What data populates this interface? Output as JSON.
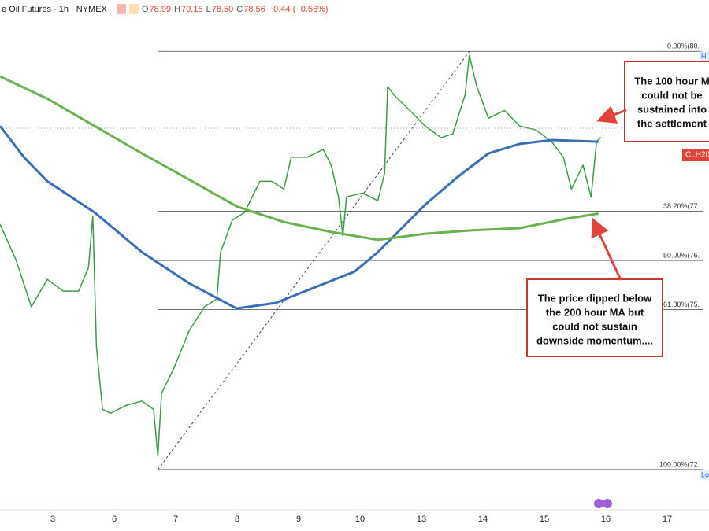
{
  "chart_data": {
    "type": "line",
    "header": {
      "symbol": "e Oil Futures · 1h · NYMEX",
      "ohlc": [
        {
          "label": "O",
          "value": "78.99"
        },
        {
          "label": "H",
          "value": "79.15"
        },
        {
          "label": "L",
          "value": "78.50"
        },
        {
          "label": "C",
          "value": "78.56"
        }
      ],
      "change": "−0.44 (−0.56%)"
    },
    "price_tag": "CLH20",
    "xlim": [
      2.14,
      13.68
    ],
    "ylim": [
      71.88,
      81.02
    ],
    "xticks": [
      {
        "value": 3,
        "label": "3"
      },
      {
        "value": 4,
        "label": "6"
      },
      {
        "value": 5,
        "label": "7"
      },
      {
        "value": 6,
        "label": "8"
      },
      {
        "value": 7,
        "label": "9"
      },
      {
        "value": 8,
        "label": "10"
      },
      {
        "value": 9,
        "label": "13"
      },
      {
        "value": 10,
        "label": "14"
      },
      {
        "value": 11,
        "label": "15"
      },
      {
        "value": 12,
        "label": "16"
      },
      {
        "value": 13,
        "label": "17"
      }
    ],
    "series": [
      {
        "color": "#3d9a4a",
        "width": 1.5,
        "x": [
          2.14,
          2.4,
          2.65,
          2.91,
          3.17,
          3.42,
          3.58,
          3.65,
          3.71,
          3.81,
          3.94,
          4.19,
          4.45,
          4.64,
          4.71,
          4.77,
          4.96,
          5.22,
          5.47,
          5.67,
          5.73,
          5.92,
          6.12,
          6.37,
          6.56,
          6.76,
          6.88,
          7.14,
          7.4,
          7.53,
          7.65,
          7.72,
          7.78,
          8.04,
          8.29,
          8.4,
          8.45,
          8.55,
          8.81,
          9.06,
          9.32,
          9.51,
          9.71,
          9.78,
          9.9,
          10.09,
          10.35,
          10.6,
          10.86,
          11.12,
          11.31,
          11.44,
          11.63,
          11.76,
          11.85,
          11.92
        ],
        "values": [
          77.0,
          76.36,
          75.52,
          76.01,
          75.8,
          75.8,
          76.22,
          77.14,
          74.81,
          73.68,
          73.61,
          73.75,
          73.83,
          73.68,
          72.84,
          73.97,
          74.39,
          75.09,
          75.52,
          75.66,
          76.5,
          77.07,
          77.21,
          77.77,
          77.77,
          77.63,
          78.2,
          78.2,
          78.34,
          78.06,
          77.49,
          76.79,
          77.49,
          77.56,
          77.42,
          77.91,
          79.47,
          79.32,
          79.04,
          78.76,
          78.55,
          78.62,
          79.32,
          80.03,
          79.47,
          78.9,
          79.04,
          78.76,
          78.69,
          78.48,
          78.2,
          77.63,
          78.06,
          77.49,
          78.48,
          78.56
        ]
      },
      {
        "color": "#3a6fb8",
        "width": 3,
        "x": [
          2.14,
          2.53,
          2.91,
          3.68,
          4.45,
          5.22,
          5.99,
          6.63,
          7.27,
          7.91,
          8.29,
          8.68,
          9.06,
          9.58,
          10.09,
          10.6,
          11.12,
          11.88
        ],
        "values": [
          78.76,
          78.2,
          77.77,
          77.21,
          76.5,
          75.94,
          75.49,
          75.59,
          75.87,
          76.15,
          76.5,
          76.93,
          77.35,
          77.84,
          78.27,
          78.44,
          78.51,
          78.48
        ]
      },
      {
        "color": "#6ab152",
        "width": 3,
        "x": [
          2.14,
          2.91,
          3.68,
          4.45,
          5.22,
          5.99,
          6.76,
          7.53,
          8.29,
          9.06,
          9.83,
          10.6,
          11.37,
          11.88
        ],
        "values": [
          79.65,
          79.25,
          78.76,
          78.27,
          77.8,
          77.32,
          77.04,
          76.86,
          76.72,
          76.83,
          76.89,
          76.93,
          77.1,
          77.19
        ]
      }
    ],
    "fib_start_x": 4.71,
    "fib_levels": [
      {
        "label": "0.00%(80.",
        "value": 80.1,
        "tag": "Hi"
      },
      {
        "label": "38.20%(77.",
        "value": 77.23
      },
      {
        "label": "50.00%(76.",
        "value": 76.35
      },
      {
        "label": "61.80%(75.",
        "value": 75.47
      },
      {
        "label": "100.00%(72.",
        "value": 72.6,
        "tag": "Lo"
      }
    ],
    "trendline": {
      "x": [
        4.71,
        9.78
      ],
      "values": [
        72.6,
        80.1
      ]
    },
    "annotations": [
      {
        "lines": [
          "The 100 hour M",
          "could not be",
          "sustained into",
          "the settlement"
        ]
      },
      {
        "lines": [
          "The price dipped below",
          "the 200 hour MA but",
          "could not sustain",
          "downside momentum...."
        ]
      }
    ]
  }
}
